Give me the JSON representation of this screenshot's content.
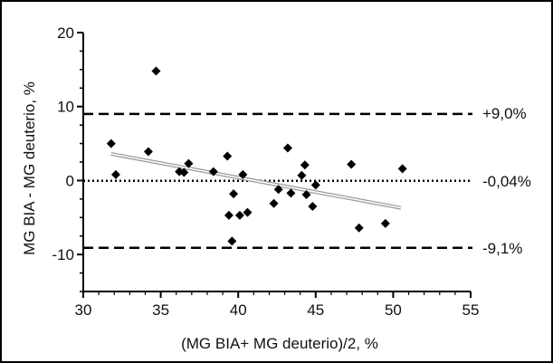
{
  "chart_data": {
    "type": "scatter",
    "title": "",
    "xlabel": "(MG BIA+ MG deuterio)/2, %",
    "ylabel": "MG BIA - MG deuterio, %",
    "xlim": [
      30,
      55
    ],
    "ylim": [
      -15,
      20
    ],
    "x_ticks": [
      "30",
      "35",
      "40",
      "45",
      "50",
      "55"
    ],
    "y_ticks": [
      "20",
      "10",
      "0",
      "-10"
    ],
    "y_tick_values": [
      20,
      10,
      0,
      -10
    ],
    "reference_lines": [
      {
        "label": "+9,0%",
        "value": 9.0,
        "style": "dashed"
      },
      {
        "label": "-0,04%",
        "value": -0.04,
        "style": "dash-dot"
      },
      {
        "label": "-9,1%",
        "value": -9.1,
        "style": "dashed"
      }
    ],
    "trend_line": {
      "x": [
        31.8,
        50.5
      ],
      "y": [
        3.6,
        -3.7
      ]
    },
    "points": [
      {
        "x": 31.8,
        "y": 5.0
      },
      {
        "x": 32.1,
        "y": 0.8
      },
      {
        "x": 34.2,
        "y": 3.9
      },
      {
        "x": 34.7,
        "y": 14.8
      },
      {
        "x": 36.2,
        "y": 1.2
      },
      {
        "x": 36.5,
        "y": 1.1
      },
      {
        "x": 36.8,
        "y": 2.3
      },
      {
        "x": 38.4,
        "y": 1.2
      },
      {
        "x": 39.3,
        "y": 3.3
      },
      {
        "x": 39.4,
        "y": -4.7
      },
      {
        "x": 39.6,
        "y": -8.2
      },
      {
        "x": 39.7,
        "y": -1.8
      },
      {
        "x": 40.1,
        "y": -4.7
      },
      {
        "x": 40.3,
        "y": 0.8
      },
      {
        "x": 40.6,
        "y": -4.3
      },
      {
        "x": 42.3,
        "y": -3.1
      },
      {
        "x": 42.6,
        "y": -1.2
      },
      {
        "x": 43.2,
        "y": 4.4
      },
      {
        "x": 43.4,
        "y": -1.7
      },
      {
        "x": 44.1,
        "y": 0.7
      },
      {
        "x": 44.3,
        "y": 2.1
      },
      {
        "x": 44.4,
        "y": -1.9
      },
      {
        "x": 44.8,
        "y": -3.5
      },
      {
        "x": 45.0,
        "y": -0.6
      },
      {
        "x": 47.3,
        "y": 2.2
      },
      {
        "x": 47.8,
        "y": -6.4
      },
      {
        "x": 49.5,
        "y": -5.8
      },
      {
        "x": 50.6,
        "y": 1.6
      }
    ]
  }
}
